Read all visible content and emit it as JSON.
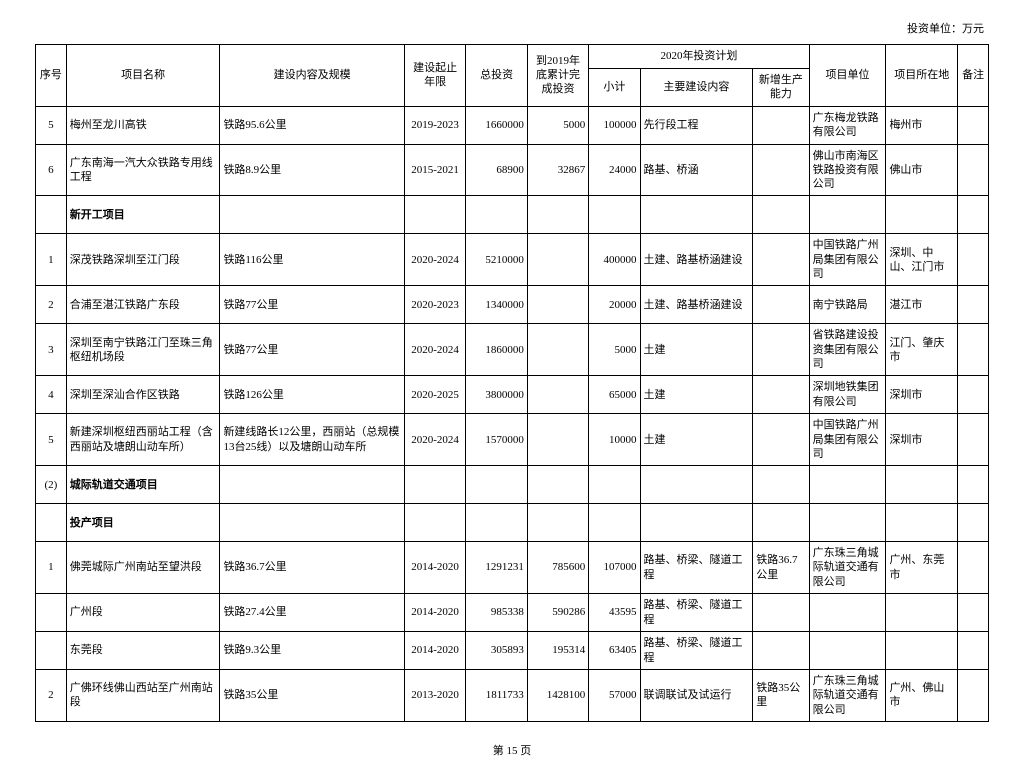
{
  "unit_label": "投资单位：万元",
  "headers": {
    "col1": "序号",
    "col2": "项目名称",
    "col3": "建设内容及规模",
    "col4": "建设起止年限",
    "col5": "总投资",
    "col6": "到2019年底累计完成投资",
    "colgroup7": "2020年投资计划",
    "col7a": "小计",
    "col7b": "主要建设内容",
    "col7c": "新增生产能力",
    "col8": "项目单位",
    "col9": "项目所在地",
    "col10": "备注"
  },
  "rows": [
    {
      "seq": "5",
      "name": "梅州至龙川高铁",
      "content": "铁路95.6公里",
      "period": "2019-2023",
      "total": "1660000",
      "done": "5000",
      "subtotal": "100000",
      "main": "先行段工程",
      "cap": "",
      "unit": "广东梅龙铁路有限公司",
      "loc": "梅州市",
      "note": ""
    },
    {
      "seq": "6",
      "name": "广东南海一汽大众铁路专用线工程",
      "content": "铁路8.9公里",
      "period": "2015-2021",
      "total": "68900",
      "done": "32867",
      "subtotal": "24000",
      "main": "路基、桥涵",
      "cap": "",
      "unit": "佛山市南海区铁路投资有限公司",
      "loc": "佛山市",
      "note": ""
    },
    {
      "seq": "",
      "name": "新开工项目",
      "bold": true
    },
    {
      "seq": "1",
      "name": "深茂铁路深圳至江门段",
      "content": "铁路116公里",
      "period": "2020-2024",
      "total": "5210000",
      "done": "",
      "subtotal": "400000",
      "main": "土建、路基桥涵建设",
      "cap": "",
      "unit": "中国铁路广州局集团有限公司",
      "loc": "深圳、中山、江门市",
      "note": ""
    },
    {
      "seq": "2",
      "name": "合浦至湛江铁路广东段",
      "content": "铁路77公里",
      "period": "2020-2023",
      "total": "1340000",
      "done": "",
      "subtotal": "20000",
      "main": "土建、路基桥涵建设",
      "cap": "",
      "unit": "南宁铁路局",
      "loc": "湛江市",
      "note": ""
    },
    {
      "seq": "3",
      "name": "深圳至南宁铁路江门至珠三角枢纽机场段",
      "content": "铁路77公里",
      "period": "2020-2024",
      "total": "1860000",
      "done": "",
      "subtotal": "5000",
      "main": "土建",
      "cap": "",
      "unit": "省铁路建设投资集团有限公司",
      "loc": "江门、肇庆市",
      "note": ""
    },
    {
      "seq": "4",
      "name": "深圳至深汕合作区铁路",
      "content": "铁路126公里",
      "period": "2020-2025",
      "total": "3800000",
      "done": "",
      "subtotal": "65000",
      "main": "土建",
      "cap": "",
      "unit": "深圳地铁集团有限公司",
      "loc": "深圳市",
      "note": ""
    },
    {
      "seq": "5",
      "name": "新建深圳枢纽西丽站工程（含西丽站及塘朗山动车所）",
      "content": "新建线路长12公里，西丽站（总规模13台25线）以及塘朗山动车所",
      "period": "2020-2024",
      "total": "1570000",
      "done": "",
      "subtotal": "10000",
      "main": "土建",
      "cap": "",
      "unit": "中国铁路广州局集团有限公司",
      "loc": "深圳市",
      "note": ""
    },
    {
      "seq": "(2)",
      "name": "城际轨道交通项目",
      "bold": true
    },
    {
      "seq": "",
      "name": "投产项目",
      "bold": true
    },
    {
      "seq": "1",
      "name": "佛莞城际广州南站至望洪段",
      "content": "铁路36.7公里",
      "period": "2014-2020",
      "total": "1291231",
      "done": "785600",
      "subtotal": "107000",
      "main": "路基、桥梁、隧道工程",
      "cap": "铁路36.7公里",
      "unit": "广东珠三角城际轨道交通有限公司",
      "loc": "广州、东莞市",
      "note": ""
    },
    {
      "seq": "",
      "name": "广州段",
      "content": "铁路27.4公里",
      "period": "2014-2020",
      "total": "985338",
      "done": "590286",
      "subtotal": "43595",
      "main": "路基、桥梁、隧道工程",
      "cap": "",
      "unit": "",
      "loc": "",
      "note": ""
    },
    {
      "seq": "",
      "name": "东莞段",
      "content": "铁路9.3公里",
      "period": "2014-2020",
      "total": "305893",
      "done": "195314",
      "subtotal": "63405",
      "main": "路基、桥梁、隧道工程",
      "cap": "",
      "unit": "",
      "loc": "",
      "note": ""
    },
    {
      "seq": "2",
      "name": "广佛环线佛山西站至广州南站段",
      "content": "铁路35公里",
      "period": "2013-2020",
      "total": "1811733",
      "done": "1428100",
      "subtotal": "57000",
      "main": "联调联试及试运行",
      "cap": "铁路35公里",
      "unit": "广东珠三角城际轨道交通有限公司",
      "loc": "广州、佛山市",
      "note": ""
    }
  ],
  "footer": "第 15 页"
}
